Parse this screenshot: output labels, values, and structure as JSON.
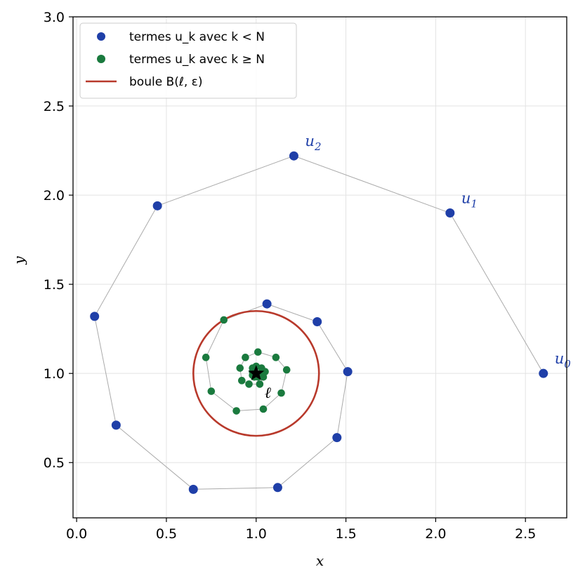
{
  "chart_data": {
    "type": "scatter",
    "xlabel": "x",
    "ylabel": "y",
    "xlim": [
      -0.02,
      2.73
    ],
    "ylim": [
      0.19,
      3.0
    ],
    "xticks": [
      "0.0",
      "0.5",
      "1.0",
      "1.5",
      "2.0",
      "2.5"
    ],
    "yticks": [
      "0.5",
      "1.0",
      "1.5",
      "2.0",
      "2.5",
      "3.0"
    ],
    "grid": true,
    "legend_position": "top-left",
    "series": [
      {
        "name": "termes u_k avec k < N",
        "color": "#1f3fa8",
        "points": [
          [
            2.6,
            1.0
          ],
          [
            2.08,
            1.9
          ],
          [
            1.21,
            2.22
          ],
          [
            0.45,
            1.94
          ],
          [
            0.1,
            1.32
          ],
          [
            0.22,
            0.71
          ],
          [
            0.65,
            0.35
          ],
          [
            1.12,
            0.36
          ],
          [
            1.45,
            0.64
          ],
          [
            1.51,
            1.01
          ],
          [
            1.34,
            1.29
          ],
          [
            1.06,
            1.39
          ]
        ]
      },
      {
        "name": "termes u_k avec k ≥ N",
        "color": "#1a7a3e",
        "points": [
          [
            0.82,
            1.3
          ],
          [
            0.72,
            1.09
          ],
          [
            0.75,
            0.9
          ],
          [
            0.89,
            0.79
          ],
          [
            1.04,
            0.8
          ],
          [
            1.14,
            0.89
          ],
          [
            1.17,
            1.02
          ],
          [
            1.11,
            1.09
          ],
          [
            1.01,
            1.12
          ],
          [
            0.94,
            1.09
          ],
          [
            0.91,
            1.03
          ],
          [
            0.92,
            0.96
          ],
          [
            0.96,
            0.94
          ],
          [
            1.02,
            0.94
          ],
          [
            1.04,
            0.98
          ],
          [
            1.05,
            1.01
          ],
          [
            1.03,
            1.03
          ],
          [
            1.0,
            1.04
          ],
          [
            0.98,
            1.03
          ],
          [
            0.98,
            1.01
          ],
          [
            0.98,
            0.99
          ],
          [
            0.99,
            0.98
          ],
          [
            1.01,
            0.98
          ],
          [
            1.02,
            0.99
          ]
        ]
      },
      {
        "name": "boule B(ℓ, ε)",
        "color": "#b8392b",
        "center": [
          1.0,
          1.0
        ],
        "radius": 0.35
      }
    ],
    "limit_point": {
      "x": 1.0,
      "y": 1.0,
      "label": "ℓ"
    },
    "term_labels": [
      {
        "base": "u",
        "sub": "0",
        "x": 2.6,
        "y": 1.0
      },
      {
        "base": "u",
        "sub": "1",
        "x": 2.08,
        "y": 1.9
      },
      {
        "base": "u",
        "sub": "2",
        "x": 1.21,
        "y": 2.22
      }
    ],
    "legend": {
      "entries": [
        {
          "text": "termes u_k avec k < N",
          "color": "#1f3fa8",
          "kind": "marker"
        },
        {
          "text": "termes u_k avec k ≥ N",
          "color": "#1a7a3e",
          "kind": "marker"
        },
        {
          "text": "boule B(ℓ, ε)",
          "color": "#b8392b",
          "kind": "line"
        }
      ]
    },
    "path_color": "#aaaaaa"
  }
}
